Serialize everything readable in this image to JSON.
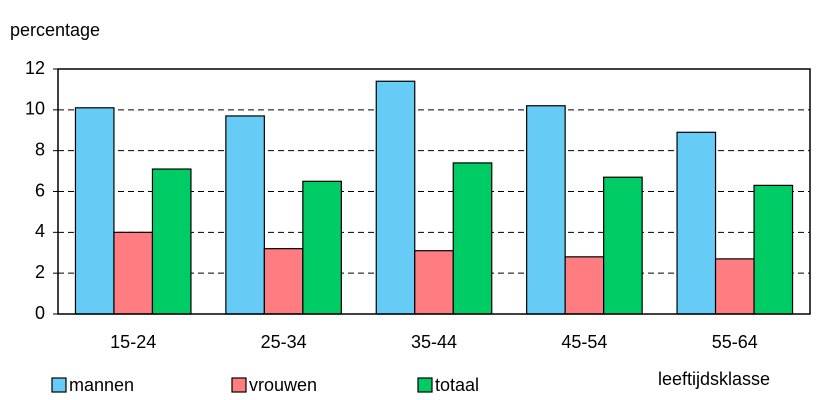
{
  "chart_data": {
    "type": "bar",
    "y_label": "percentage",
    "x_label": "leeftijdsklasse",
    "categories": [
      "15-24",
      "25-34",
      "35-44",
      "45-54",
      "55-64"
    ],
    "series": [
      {
        "name": "mannen",
        "color": "#66ccf5",
        "values": [
          10.1,
          9.7,
          11.4,
          10.2,
          8.9
        ]
      },
      {
        "name": "vrouwen",
        "color": "#ff7c80",
        "values": [
          4.0,
          3.2,
          3.1,
          2.8,
          2.7
        ]
      },
      {
        "name": "totaal",
        "color": "#00cc66",
        "values": [
          7.1,
          6.5,
          7.4,
          6.7,
          6.3
        ]
      }
    ],
    "ylim": [
      0,
      12
    ],
    "yticks": [
      0,
      2,
      4,
      6,
      8,
      10,
      12
    ],
    "grid": true
  }
}
